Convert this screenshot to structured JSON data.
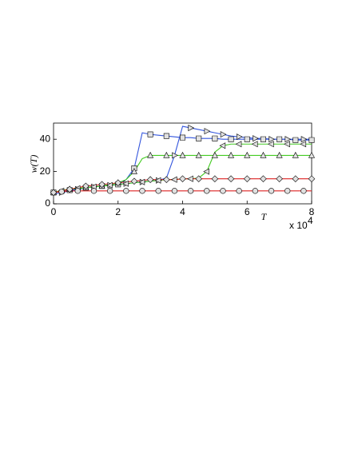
{
  "chart_data": {
    "type": "line",
    "xlabel": "T",
    "ylabel": "w(T)",
    "x_scale_label": "x 10",
    "x_scale_exponent": "4",
    "xlim": [
      0,
      8
    ],
    "xticks": [
      0,
      2,
      4,
      6,
      8
    ],
    "ylim": [
      0,
      50
    ],
    "yticks": [
      0,
      20,
      40
    ],
    "grid": false,
    "x": [
      0,
      0.25,
      0.5,
      0.75,
      1,
      1.25,
      1.5,
      1.75,
      2,
      2.25,
      2.5,
      2.75,
      3,
      3.25,
      3.5,
      3.75,
      4,
      4.25,
      4.5,
      4.75,
      5,
      5.25,
      5.5,
      5.75,
      6,
      6.25,
      6.5,
      6.75,
      7,
      7.25,
      7.5,
      7.75,
      8
    ],
    "series": [
      {
        "color": "#3355dd",
        "marker": "square",
        "values": [
          7,
          8,
          8.5,
          9,
          10,
          10.5,
          11,
          11.5,
          12,
          15,
          22,
          44,
          43,
          42.5,
          42,
          41.5,
          41,
          41,
          40.5,
          40.5,
          40.5,
          40,
          40,
          40,
          40,
          40,
          40,
          40,
          40,
          40,
          39.5,
          39.5,
          39.5
        ]
      },
      {
        "color": "#3355dd",
        "marker": "triangle-right",
        "values": [
          6,
          7,
          8,
          9,
          10,
          10.5,
          11,
          11.5,
          12,
          12.5,
          13,
          13.5,
          14,
          14.5,
          16,
          30,
          48,
          47,
          46,
          45,
          44,
          43,
          42,
          41.5,
          41,
          40.5,
          40.5,
          40,
          40,
          40,
          40,
          40,
          40
        ]
      },
      {
        "color": "#44cc22",
        "marker": "triangle-up",
        "values": [
          7,
          8.5,
          9,
          9.5,
          10,
          10.5,
          11,
          12,
          13,
          15,
          20,
          28,
          30,
          30,
          30,
          30,
          30,
          30,
          30,
          30,
          30,
          30,
          30,
          30,
          30,
          30,
          30,
          30,
          30,
          30,
          30,
          30,
          30
        ]
      },
      {
        "color": "#44cc22",
        "marker": "triangle-left",
        "values": [
          7,
          8,
          9,
          9.5,
          10,
          10.5,
          11,
          11.5,
          12,
          12.5,
          13,
          13.5,
          14,
          14.5,
          15,
          15,
          15.5,
          15.5,
          16,
          20,
          32,
          36,
          37,
          37,
          37,
          37,
          37,
          37,
          37,
          37,
          37,
          37,
          37
        ]
      },
      {
        "color": "#dd2222",
        "marker": "diamond",
        "values": [
          7,
          8,
          9,
          10,
          11,
          11.5,
          12,
          12.5,
          13,
          13.5,
          14,
          14.5,
          15,
          15,
          15,
          15,
          15.5,
          15.5,
          15.5,
          15.5,
          15.5,
          15.5,
          15.5,
          15.5,
          15.5,
          15.5,
          15.5,
          15.5,
          15.5,
          15.5,
          15.5,
          15.5,
          15.5
        ]
      },
      {
        "color": "#dd2222",
        "marker": "circle",
        "values": [
          7,
          7.5,
          8,
          8,
          8,
          8,
          8,
          8,
          8,
          8,
          8,
          8,
          8,
          8,
          8,
          8,
          8,
          8,
          8,
          8,
          8,
          8,
          8,
          8,
          8,
          8,
          8,
          8,
          8,
          8,
          8,
          8,
          8
        ]
      }
    ]
  }
}
